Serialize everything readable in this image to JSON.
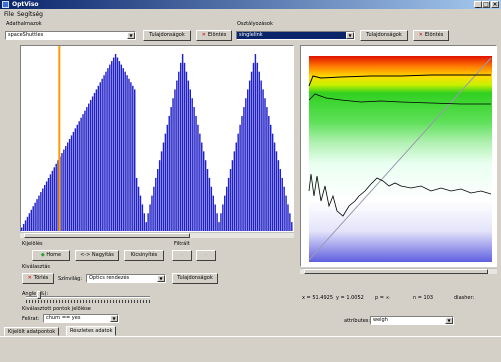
{
  "window": {
    "title": "OptViso",
    "min": "_",
    "max": "□",
    "close": "×"
  },
  "menu": [
    "File",
    "Segítség"
  ],
  "left_selector": {
    "label": "Adathalmazok",
    "value": "spaceShuttles",
    "props_button": "Tulajdonságok",
    "delete_button": "Elöntés"
  },
  "right_selector": {
    "label": "Osztályozások",
    "value": "singlelink",
    "props_button": "Tulajdonságok",
    "delete_button": "Elöntés"
  },
  "controls": {
    "view_label": "Kijelölés",
    "home_button": "Home",
    "magnify_button": "<-> Nagyítás",
    "zoom_button": "Kicsinyítés",
    "filter_label": "Filtrált",
    "filter_buttons": [
      "-",
      "-"
    ],
    "selection_label": "Kiválasztás",
    "delete_button": "Törlés",
    "cluster_label": "Színvilág:",
    "cluster_value": "Optics rendezés",
    "cluster_props_button": "Tulajdonságok",
    "angle_label": "Angle (%):",
    "points_label": "Kiválasztott pontok jelölése",
    "mark_label": "Felirat:",
    "mark_value": "churn == yes"
  },
  "stats": {
    "x": "x = 51.4925",
    "y": "y = 1.0052",
    "p": "p = ∞",
    "n": "n = 103",
    "status": "dlasher:"
  },
  "attribute": {
    "label": "attributes:",
    "value": "weigh"
  },
  "tabs": [
    "Kijelölt adatpontok",
    "Részletes adatok"
  ],
  "colors": {
    "bar": "#2020c8",
    "marker": "#ff9a00",
    "diag": "#9a9ab0"
  },
  "chart_data": {
    "type": "bar",
    "title": "",
    "xlabel": "",
    "ylabel": "",
    "values": [
      0.02,
      0.04,
      0.06,
      0.08,
      0.1,
      0.12,
      0.14,
      0.16,
      0.18,
      0.2,
      0.22,
      0.24,
      0.26,
      0.28,
      0.3,
      0.32,
      0.34,
      0.36,
      0.38,
      0.4,
      0.42,
      0.44,
      0.46,
      0.48,
      0.5,
      0.52,
      0.54,
      0.56,
      0.58,
      0.6,
      0.62,
      0.64,
      0.66,
      0.68,
      0.7,
      0.72,
      0.74,
      0.76,
      0.78,
      0.8,
      0.82,
      0.84,
      0.86,
      0.88,
      0.9,
      0.92,
      0.94,
      0.96,
      0.98,
      1.0,
      0.98,
      0.96,
      0.94,
      0.92,
      0.9,
      0.88,
      0.86,
      0.84,
      0.82,
      0.8,
      0.3,
      0.25,
      0.2,
      0.15,
      0.1,
      0.05,
      0.1,
      0.15,
      0.2,
      0.25,
      0.3,
      0.35,
      0.4,
      0.45,
      0.5,
      0.55,
      0.6,
      0.65,
      0.7,
      0.75,
      0.8,
      0.85,
      0.9,
      0.95,
      1.0,
      0.95,
      0.9,
      0.85,
      0.8,
      0.75,
      0.7,
      0.65,
      0.6,
      0.55,
      0.5,
      0.45,
      0.4,
      0.35,
      0.3,
      0.25,
      0.2,
      0.15,
      0.1,
      0.05,
      0.1,
      0.15,
      0.2,
      0.25,
      0.3,
      0.35,
      0.4,
      0.45,
      0.5,
      0.55,
      0.6,
      0.65,
      0.7,
      0.75,
      0.8,
      0.85,
      0.9,
      0.95,
      1.0,
      0.95,
      0.9,
      0.85,
      0.8,
      0.75,
      0.7,
      0.65,
      0.6,
      0.55,
      0.5,
      0.45,
      0.4,
      0.35,
      0.3,
      0.25,
      0.2,
      0.15,
      0.1,
      0.05
    ],
    "marker_index": 20
  }
}
